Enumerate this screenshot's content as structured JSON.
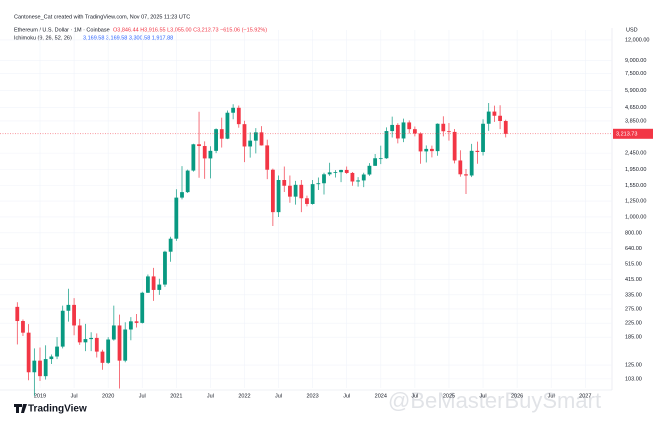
{
  "chart_data": {
    "type": "candlestick",
    "credit": "Cantonese_Cat created with TradingView.com, Nov 07, 2025 11:23 UTC",
    "title": "Ethereum / U.S. Dollar · 1M · Coinbase",
    "ohlc_text": "O3,846.44 H3,916.55 L3,055.00 C3,213.73 −615.06 (−15.92%)",
    "indicator": "Ichimoku (9, 26, 52, 26)",
    "indicator_values": "3,169.58 3,169.58 3,300.58 1,917.88",
    "currency": "USD",
    "last_price_label": "3,213.73",
    "brand": "TradingView",
    "watermark": "@BeMasterBuySmart",
    "up_color": "#089981",
    "down_color": "#f23645",
    "log_scale": true,
    "x": [
      "2018-09",
      "2018-10",
      "2018-11",
      "2018-12",
      "2019-01",
      "2019-02",
      "2019-03",
      "2019-04",
      "2019-05",
      "2019-06",
      "2019-07",
      "2019-08",
      "2019-09",
      "2019-10",
      "2019-11",
      "2019-12",
      "2020-01",
      "2020-02",
      "2020-03",
      "2020-04",
      "2020-05",
      "2020-06",
      "2020-07",
      "2020-08",
      "2020-09",
      "2020-10",
      "2020-11",
      "2020-12",
      "2021-01",
      "2021-02",
      "2021-03",
      "2021-04",
      "2021-05",
      "2021-06",
      "2021-07",
      "2021-08",
      "2021-09",
      "2021-10",
      "2021-11",
      "2021-12",
      "2022-01",
      "2022-02",
      "2022-03",
      "2022-04",
      "2022-05",
      "2022-06",
      "2022-07",
      "2022-08",
      "2022-09",
      "2022-10",
      "2022-11",
      "2022-12",
      "2023-01",
      "2023-02",
      "2023-03",
      "2023-04",
      "2023-05",
      "2023-06",
      "2023-07",
      "2023-08",
      "2023-09",
      "2023-10",
      "2023-11",
      "2023-12",
      "2024-01",
      "2024-02",
      "2024-03",
      "2024-04",
      "2024-05",
      "2024-06",
      "2024-07",
      "2024-08",
      "2024-09",
      "2024-10",
      "2024-11",
      "2024-12",
      "2025-01",
      "2025-02",
      "2025-03",
      "2025-04",
      "2025-05",
      "2025-06",
      "2025-07",
      "2025-08",
      "2025-09",
      "2025-10",
      "2025-11"
    ],
    "open": [
      283,
      232,
      197,
      113,
      133,
      107,
      136,
      141,
      162,
      268,
      291,
      218,
      172,
      180,
      183,
      151,
      129,
      179,
      218,
      133,
      206,
      231,
      226,
      345,
      434,
      359,
      387,
      614,
      737,
      1312,
      1417,
      1918,
      2774,
      2707,
      2275,
      2530,
      3430,
      3000,
      4320,
      4630,
      3680,
      2690,
      2920,
      3280,
      2730,
      1940,
      1070,
      1680,
      1550,
      1330,
      1570,
      1300,
      1200,
      1585,
      1605,
      1820,
      1870,
      1875,
      1935,
      1855,
      1645,
      1670,
      1815,
      2050,
      2280,
      2280,
      3340,
      3640,
      3010,
      3770,
      3430,
      3230,
      2510,
      2600,
      2520,
      3700,
      3330,
      3300,
      2210,
      1820,
      1790,
      2530,
      2490,
      3700,
      4390,
      4140,
      3846.44
    ],
    "high": [
      302,
      237,
      222,
      158,
      160,
      165,
      145,
      185,
      288,
      365,
      320,
      239,
      223,
      198,
      195,
      155,
      185,
      288,
      254,
      228,
      245,
      256,
      350,
      446,
      489,
      420,
      622,
      757,
      1476,
      2042,
      1944,
      2797,
      4380,
      2890,
      2700,
      3470,
      4030,
      4460,
      4870,
      4780,
      3860,
      3280,
      3480,
      3580,
      2960,
      1970,
      1790,
      2030,
      1790,
      1660,
      1680,
      1350,
      1680,
      1740,
      1860,
      2140,
      1930,
      1940,
      2030,
      1880,
      1750,
      1860,
      2130,
      2420,
      2720,
      3520,
      4090,
      3730,
      3980,
      3880,
      3560,
      3280,
      2730,
      2720,
      3720,
      4110,
      3740,
      3440,
      2550,
      1960,
      2790,
      2880,
      3940,
      4950,
      4770,
      4800,
      3916.55
    ],
    "low": [
      167,
      188,
      101,
      81,
      100,
      102,
      127,
      136,
      158,
      230,
      190,
      166,
      152,
      152,
      139,
      117,
      127,
      176,
      90,
      130,
      177,
      212,
      224,
      344,
      308,
      335,
      375,
      533,
      715,
      1280,
      1400,
      1888,
      1733,
      1707,
      1720,
      2450,
      2650,
      2980,
      3940,
      3500,
      2160,
      2300,
      2440,
      2720,
      1700,
      880,
      1000,
      1420,
      1220,
      1190,
      1070,
      1160,
      1190,
      1460,
      1370,
      1780,
      1740,
      1630,
      1830,
      1550,
      1530,
      1520,
      1780,
      2050,
      2100,
      2260,
      3050,
      2810,
      2860,
      3230,
      3100,
      2110,
      2150,
      2310,
      2360,
      3100,
      2920,
      2120,
      1760,
      1380,
      1750,
      2110,
      2370,
      3350,
      3800,
      3430,
      3055.0
    ],
    "close": [
      232,
      197,
      113,
      133,
      107,
      136,
      141,
      162,
      268,
      291,
      218,
      172,
      180,
      183,
      151,
      129,
      179,
      218,
      133,
      206,
      231,
      226,
      345,
      434,
      359,
      387,
      614,
      737,
      1312,
      1417,
      1918,
      2774,
      2707,
      2275,
      2530,
      3430,
      3000,
      4320,
      4630,
      3680,
      2690,
      2920,
      3280,
      2730,
      1940,
      1070,
      1680,
      1550,
      1330,
      1570,
      1300,
      1200,
      1585,
      1605,
      1820,
      1870,
      1875,
      1935,
      1855,
      1645,
      1670,
      1815,
      2050,
      2280,
      2280,
      3340,
      3640,
      3010,
      3770,
      3430,
      3230,
      2510,
      2600,
      2520,
      3700,
      3330,
      3300,
      2210,
      1820,
      1790,
      2530,
      2490,
      3700,
      4390,
      4140,
      3846.44,
      3213.73
    ],
    "ylim": [
      90.6,
      13800
    ],
    "yticks": [
      {
        "value": 12000,
        "label": "12,000.00"
      },
      {
        "value": 9000,
        "label": "9,000.00"
      },
      {
        "value": 7500,
        "label": "7,500.00"
      },
      {
        "value": 5900,
        "label": "5,900.00"
      },
      {
        "value": 4650,
        "label": "4,650.00"
      },
      {
        "value": 3850,
        "label": "3,850.00"
      },
      {
        "value": 2450,
        "label": "2,450.00"
      },
      {
        "value": 1950,
        "label": "1,950.00"
      },
      {
        "value": 1550,
        "label": "1,550.00"
      },
      {
        "value": 1250,
        "label": "1,250.00"
      },
      {
        "value": 1000,
        "label": "1,000.00"
      },
      {
        "value": 800,
        "label": "800.00"
      },
      {
        "value": 640,
        "label": "640.00"
      },
      {
        "value": 515,
        "label": "515.00"
      },
      {
        "value": 415,
        "label": "415.00"
      },
      {
        "value": 335,
        "label": "335.00"
      },
      {
        "value": 275,
        "label": "275.00"
      },
      {
        "value": 225,
        "label": "225.00"
      },
      {
        "value": 185,
        "label": "185.00"
      },
      {
        "value": 125,
        "label": "125.00"
      },
      {
        "value": 103,
        "label": "103.00"
      }
    ],
    "xticks": [
      {
        "value": "2019-01",
        "label": "2019"
      },
      {
        "value": "2019-07",
        "label": "Jul"
      },
      {
        "value": "2020-01",
        "label": "2020"
      },
      {
        "value": "2020-07",
        "label": "Jul"
      },
      {
        "value": "2021-01",
        "label": "2021"
      },
      {
        "value": "2021-07",
        "label": "Jul"
      },
      {
        "value": "2022-01",
        "label": "2022"
      },
      {
        "value": "2022-07",
        "label": "Jul"
      },
      {
        "value": "2023-01",
        "label": "2023"
      },
      {
        "value": "2023-07",
        "label": "Jul"
      },
      {
        "value": "2024-01",
        "label": "2024"
      },
      {
        "value": "2024-07",
        "label": "Jul"
      },
      {
        "value": "2025-01",
        "label": "2025"
      },
      {
        "value": "2025-07",
        "label": "Jul"
      },
      {
        "value": "2026-01",
        "label": "2026"
      },
      {
        "value": "2026-07",
        "label": "Jul"
      },
      {
        "value": "2027-01",
        "label": "2027"
      }
    ]
  }
}
